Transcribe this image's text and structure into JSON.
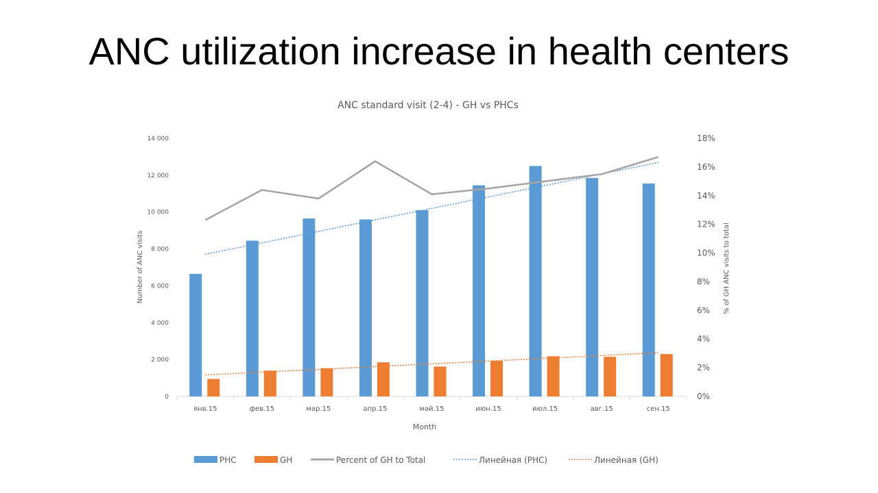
{
  "slide": {
    "title": "ANC utilization increase in health centers"
  },
  "chart_data": {
    "type": "bar",
    "title": "ANC standard visit (2-4) - GH vs PHCs",
    "xlabel": "Month",
    "ylabel": "Number of ANC visits",
    "y2label": "% of GH ANC visits to total",
    "categories": [
      "янв.15",
      "фев.15",
      "мар.15",
      "апр.15",
      "май.15",
      "июн.15",
      "июл.15",
      "авг.15",
      "сен.15"
    ],
    "ylim": [
      0,
      14000
    ],
    "yticks": [
      "0",
      "2 000",
      "4 000",
      "6 000",
      "8 000",
      "10 000",
      "12 000",
      "14 000"
    ],
    "y2lim": [
      0,
      18
    ],
    "y2ticks": [
      "0%",
      "2%",
      "4%",
      "6%",
      "8%",
      "10%",
      "12%",
      "14%",
      "16%",
      "18%"
    ],
    "series": [
      {
        "name": "PHC",
        "type": "bar",
        "axis": "left",
        "color": "#5B9BD5",
        "values": [
          6650,
          8450,
          9650,
          9600,
          10100,
          11450,
          12500,
          11850,
          11550
        ]
      },
      {
        "name": "GH",
        "type": "bar",
        "axis": "left",
        "color": "#ED7D31",
        "values": [
          950,
          1400,
          1530,
          1850,
          1620,
          1930,
          2180,
          2150,
          2300
        ]
      },
      {
        "name": "Percent of GH to Total",
        "type": "line",
        "axis": "right",
        "color": "#A5A5A5",
        "values": [
          12.3,
          14.4,
          13.8,
          16.4,
          14.1,
          14.5,
          15.0,
          15.5,
          16.7
        ]
      },
      {
        "name": "Линейная (PHC)",
        "type": "trendline",
        "axis": "left",
        "color": "#5B9BD5",
        "of": "PHC"
      },
      {
        "name": "Линейная (GH)",
        "type": "trendline",
        "axis": "left",
        "color": "#ED7D31",
        "of": "GH"
      }
    ],
    "legend": "bottom",
    "grid": false
  }
}
